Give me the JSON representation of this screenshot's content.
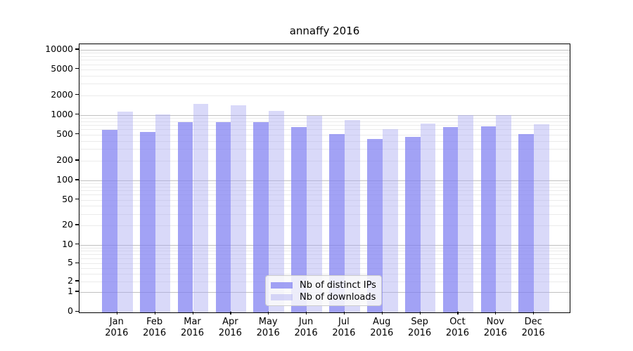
{
  "title": "annaffy 2016",
  "chart_data": {
    "type": "bar",
    "title": "annaffy 2016",
    "year": "2016",
    "categories": [
      "Jan",
      "Feb",
      "Mar",
      "Apr",
      "May",
      "Jun",
      "Jul",
      "Aug",
      "Sep",
      "Oct",
      "Nov",
      "Dec"
    ],
    "series": [
      {
        "name": "Nb of distinct IPs",
        "color": "rgba(126,126,241,0.72)",
        "values": [
          590,
          555,
          775,
          785,
          775,
          655,
          515,
          430,
          460,
          645,
          670,
          515
        ]
      },
      {
        "name": "Nb of downloads",
        "color": "rgba(171,171,242,0.45)",
        "values": [
          1130,
          1030,
          1470,
          1390,
          1150,
          960,
          830,
          610,
          735,
          1005,
          995,
          725
        ]
      }
    ],
    "xlabel": "",
    "ylabel": "",
    "yscale": "symlog",
    "yticks": [
      10000,
      5000,
      2000,
      1000,
      500,
      200,
      100,
      50,
      20,
      10,
      5,
      2,
      1,
      0
    ],
    "ylim": [
      0,
      12800
    ],
    "grid": true,
    "legend_position": "lower center"
  },
  "icons": {
    "legend_swatch_ips": "solid-purple-swatch",
    "legend_swatch_downloads": "light-purple-swatch"
  }
}
